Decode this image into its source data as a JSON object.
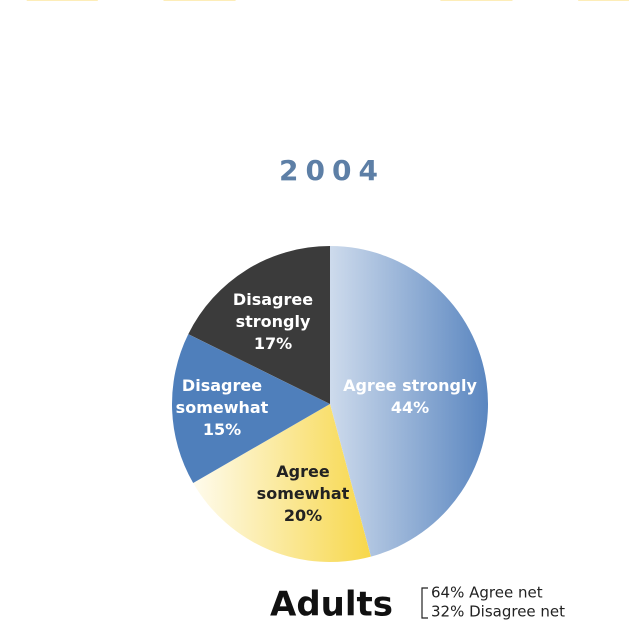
{
  "chart_data": {
    "type": "pie",
    "title": "2004",
    "categories": [
      "Agree strongly",
      "Agree somewhat",
      "Disagree somewhat",
      "Disagree strongly"
    ],
    "values": [
      44,
      20,
      15,
      17
    ],
    "value_labels": [
      "44%",
      "20%",
      "15%",
      "17%"
    ],
    "colors": [
      "#5a86c0",
      "#f7d74a",
      "#4f7fbb",
      "#3b3b3b"
    ],
    "footer_label": "Adults",
    "notes": [
      "64% Agree net",
      "32% Disagree net"
    ]
  }
}
